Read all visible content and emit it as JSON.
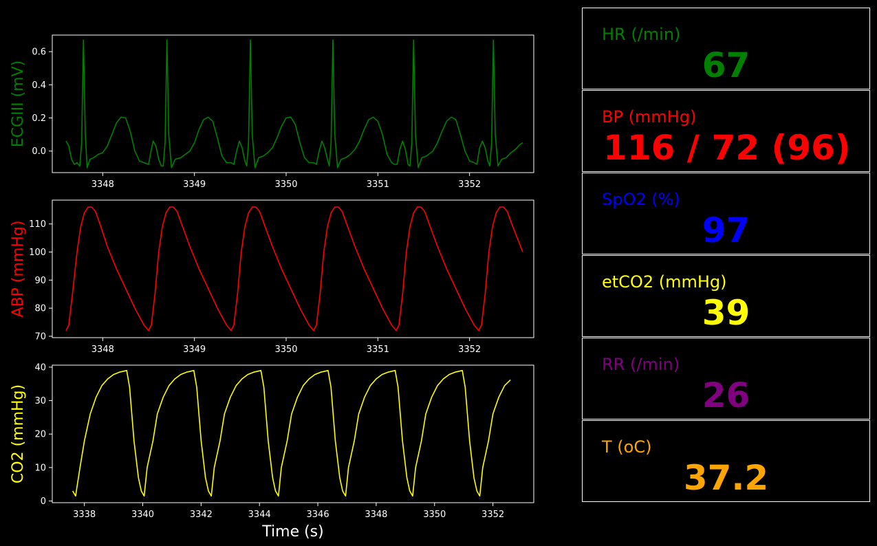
{
  "colors": {
    "ecg": "#008000",
    "abp": "#ff0000",
    "co2": "#ffff00",
    "hr": "#008000",
    "bp": "#ff0000",
    "spo2": "#0000ff",
    "etco2": "#ffff00",
    "rr": "#800080",
    "temp": "#ffa500",
    "axes": "#ffffff",
    "background": "#000000"
  },
  "chart_data": [
    {
      "type": "line",
      "ylabel": "ECGIII (mV)",
      "xlabel": "",
      "color": "#008000",
      "xlim": [
        3347.45,
        3352.7
      ],
      "ylim": [
        -0.13,
        0.7
      ],
      "xticks": [
        3348,
        3349,
        3350,
        3351,
        3352
      ],
      "xtick_labels": [
        "3348",
        "3349",
        "3350",
        "3351",
        "3352"
      ],
      "yticks": [
        0.0,
        0.2,
        0.4,
        0.6
      ],
      "ytick_labels": [
        "0.0",
        "0.2",
        "0.4",
        "0.6"
      ],
      "x": [
        3347.6,
        3347.63,
        3347.66,
        3347.69,
        3347.72,
        3347.75,
        3347.77,
        3347.79,
        3347.81,
        3347.83,
        3347.86,
        3347.9,
        3347.95,
        3348.0,
        3348.05,
        3348.1,
        3348.15,
        3348.2,
        3348.25,
        3348.3,
        3348.35,
        3348.4,
        3348.45,
        3348.5,
        3348.53,
        3348.55,
        3348.58,
        3348.61,
        3348.64,
        3348.66,
        3348.68,
        3348.7,
        3348.72,
        3348.75,
        3348.79,
        3348.85,
        3348.9,
        3348.95,
        3349.0,
        3349.05,
        3349.1,
        3349.15,
        3349.2,
        3349.25,
        3349.3,
        3349.35,
        3349.4,
        3349.43,
        3349.46,
        3349.49,
        3349.52,
        3349.55,
        3349.57,
        3349.59,
        3349.61,
        3349.63,
        3349.66,
        3349.7,
        3349.75,
        3349.8,
        3349.85,
        3349.9,
        3349.95,
        3350.0,
        3350.05,
        3350.1,
        3350.15,
        3350.2,
        3350.25,
        3350.3,
        3350.33,
        3350.36,
        3350.39,
        3350.42,
        3350.45,
        3350.47,
        3350.49,
        3350.51,
        3350.53,
        3350.56,
        3350.6,
        3350.65,
        3350.7,
        3350.75,
        3350.8,
        3350.85,
        3350.9,
        3350.95,
        3351.0,
        3351.05,
        3351.1,
        3351.15,
        3351.18,
        3351.21,
        3351.24,
        3351.27,
        3351.3,
        3351.33,
        3351.35,
        3351.37,
        3351.39,
        3351.41,
        3351.44,
        3351.48,
        3351.53,
        3351.6,
        3351.65,
        3351.7,
        3351.75,
        3351.8,
        3351.85,
        3351.9,
        3351.95,
        3352.0,
        3352.05,
        3352.08,
        3352.11,
        3352.14,
        3352.17,
        3352.2,
        3352.22,
        3352.24,
        3352.26,
        3352.28,
        3352.31,
        3352.35,
        3352.4,
        3352.45,
        3352.5,
        3352.55,
        3352.58
      ],
      "y": [
        0.06,
        0.03,
        -0.05,
        -0.08,
        -0.07,
        -0.09,
        0.05,
        0.67,
        0.1,
        -0.1,
        -0.05,
        -0.04,
        -0.02,
        -0.01,
        0.03,
        0.1,
        0.17,
        0.205,
        0.2,
        0.12,
        0.0,
        -0.06,
        -0.07,
        -0.08,
        0.01,
        0.06,
        0.03,
        -0.05,
        -0.09,
        -0.09,
        0.05,
        0.67,
        0.1,
        -0.1,
        -0.05,
        -0.04,
        -0.02,
        0.0,
        0.05,
        0.13,
        0.19,
        0.205,
        0.18,
        0.08,
        -0.03,
        -0.07,
        -0.07,
        -0.08,
        0.0,
        0.06,
        0.02,
        -0.06,
        -0.09,
        0.05,
        0.67,
        0.1,
        -0.1,
        -0.04,
        -0.03,
        -0.01,
        0.02,
        0.08,
        0.15,
        0.2,
        0.205,
        0.16,
        0.05,
        -0.04,
        -0.07,
        -0.07,
        -0.08,
        0.0,
        0.06,
        0.02,
        -0.05,
        -0.09,
        0.05,
        0.67,
        0.1,
        -0.1,
        -0.05,
        -0.04,
        -0.02,
        0.01,
        0.06,
        0.13,
        0.19,
        0.205,
        0.18,
        0.1,
        -0.02,
        -0.07,
        -0.08,
        -0.08,
        0.01,
        0.06,
        0.01,
        -0.08,
        -0.09,
        0.05,
        0.67,
        0.1,
        -0.1,
        -0.04,
        -0.03,
        0.0,
        0.05,
        0.12,
        0.18,
        0.205,
        0.19,
        0.1,
        0.0,
        -0.06,
        -0.07,
        -0.08,
        0.02,
        0.06,
        0.02,
        -0.06,
        -0.09,
        0.05,
        0.67,
        0.1,
        -0.09,
        -0.05,
        -0.04,
        -0.01,
        0.01,
        0.04,
        0.05
      ]
    },
    {
      "type": "line",
      "ylabel": "ABP (mmHg)",
      "xlabel": "",
      "color": "#ff0000",
      "xlim": [
        3347.45,
        3352.7
      ],
      "ylim": [
        69.5,
        118.5
      ],
      "xticks": [
        3348,
        3349,
        3350,
        3351,
        3352
      ],
      "xtick_labels": [
        "3348",
        "3349",
        "3350",
        "3351",
        "3352"
      ],
      "yticks": [
        70,
        80,
        90,
        100,
        110
      ],
      "ytick_labels": [
        "70",
        "80",
        "90",
        "100",
        "110"
      ],
      "x": [
        3347.6,
        3347.63,
        3347.67,
        3347.72,
        3347.76,
        3347.8,
        3347.84,
        3347.88,
        3347.92,
        3347.97,
        3348.05,
        3348.15,
        3348.25,
        3348.35,
        3348.45,
        3348.5,
        3348.53,
        3348.57,
        3348.61,
        3348.65,
        3348.69,
        3348.73,
        3348.77,
        3348.81,
        3348.86,
        3348.95,
        3349.05,
        3349.15,
        3349.25,
        3349.35,
        3349.4,
        3349.43,
        3349.47,
        3349.51,
        3349.55,
        3349.59,
        3349.63,
        3349.67,
        3349.71,
        3349.76,
        3349.85,
        3349.95,
        3350.05,
        3350.15,
        3350.25,
        3350.3,
        3350.33,
        3350.37,
        3350.41,
        3350.45,
        3350.49,
        3350.53,
        3350.57,
        3350.61,
        3350.66,
        3350.75,
        3350.85,
        3350.95,
        3351.05,
        3351.15,
        3351.2,
        3351.23,
        3351.27,
        3351.31,
        3351.35,
        3351.39,
        3351.43,
        3351.47,
        3351.51,
        3351.56,
        3351.65,
        3351.75,
        3351.85,
        3351.95,
        3352.05,
        3352.1,
        3352.13,
        3352.17,
        3352.21,
        3352.25,
        3352.29,
        3352.33,
        3352.37,
        3352.41,
        3352.46,
        3352.52,
        3352.58
      ],
      "y": [
        72,
        74,
        85,
        100,
        109,
        114,
        116,
        116,
        114.5,
        110,
        102,
        94,
        87,
        80,
        74,
        72,
        74,
        85,
        100,
        109,
        114,
        116,
        116,
        114.5,
        110,
        102,
        94,
        87,
        80,
        74,
        72,
        74,
        85,
        100,
        109,
        114,
        116,
        116,
        114.5,
        110,
        102,
        94,
        87,
        80,
        74,
        72,
        74,
        85,
        100,
        109,
        114,
        116,
        116,
        114.5,
        110,
        102,
        94,
        87,
        80,
        74,
        72,
        74,
        85,
        100,
        109,
        114,
        116,
        116,
        114.5,
        110,
        102,
        94,
        87,
        80,
        74,
        72,
        74,
        85,
        100,
        109,
        114,
        116,
        116,
        114.5,
        110,
        105,
        100
      ]
    },
    {
      "type": "line",
      "ylabel": "CO2 (mmHg)",
      "xlabel": "Time (s)",
      "color": "#ffff00",
      "xlim": [
        3336.9,
        3353.4
      ],
      "ylim": [
        -0.5,
        40.6
      ],
      "xticks": [
        3338,
        3340,
        3342,
        3344,
        3346,
        3348,
        3350,
        3352
      ],
      "xtick_labels": [
        "3338",
        "3340",
        "3342",
        "3344",
        "3346",
        "3348",
        "3350",
        "3352"
      ],
      "yticks": [
        0,
        10,
        20,
        30,
        40
      ],
      "ytick_labels": [
        "0",
        "10",
        "20",
        "30",
        "40"
      ],
      "x": [
        3337.6,
        3337.7,
        3337.85,
        3338.0,
        3338.2,
        3338.4,
        3338.6,
        3338.8,
        3339.0,
        3339.2,
        3339.45,
        3339.55,
        3339.7,
        3339.85,
        3339.95,
        3340.05,
        3340.15,
        3340.35,
        3340.5,
        3340.7,
        3340.9,
        3341.1,
        3341.3,
        3341.5,
        3341.75,
        3341.85,
        3342.0,
        3342.15,
        3342.25,
        3342.35,
        3342.45,
        3342.65,
        3342.8,
        3343.0,
        3343.2,
        3343.4,
        3343.6,
        3343.8,
        3344.05,
        3344.15,
        3344.3,
        3344.45,
        3344.55,
        3344.65,
        3344.75,
        3344.95,
        3345.1,
        3345.3,
        3345.5,
        3345.7,
        3345.9,
        3346.1,
        3346.35,
        3346.45,
        3346.6,
        3346.75,
        3346.85,
        3346.95,
        3347.05,
        3347.25,
        3347.4,
        3347.6,
        3347.8,
        3348.0,
        3348.2,
        3348.4,
        3348.65,
        3348.75,
        3348.9,
        3349.05,
        3349.15,
        3349.25,
        3349.35,
        3349.55,
        3349.7,
        3349.9,
        3350.1,
        3350.3,
        3350.5,
        3350.7,
        3350.95,
        3351.05,
        3351.2,
        3351.35,
        3351.45,
        3351.55,
        3351.65,
        3351.85,
        3352.0,
        3352.2,
        3352.4,
        3352.6
      ],
      "y": [
        3,
        1.5,
        10,
        18,
        26,
        31,
        34.5,
        36.5,
        37.8,
        38.5,
        39,
        34,
        18,
        7,
        3,
        1.5,
        10,
        18,
        26,
        31,
        34.5,
        36.5,
        37.8,
        38.5,
        39,
        34,
        18,
        7,
        3,
        1.5,
        10,
        18,
        26,
        31,
        34.5,
        36.5,
        37.8,
        38.5,
        39,
        34,
        18,
        7,
        3,
        1.5,
        10,
        18,
        26,
        31,
        34.5,
        36.5,
        37.8,
        38.5,
        39,
        34,
        18,
        7,
        3,
        1.5,
        10,
        18,
        26,
        31,
        34.5,
        36.5,
        37.8,
        38.5,
        39,
        34,
        18,
        7,
        3,
        1.5,
        10,
        18,
        26,
        31,
        34.5,
        36.5,
        37.8,
        38.5,
        39,
        34,
        18,
        7,
        3,
        1.5,
        10,
        18,
        26,
        31,
        34.5,
        36.2
      ]
    }
  ],
  "vitals": {
    "hr": {
      "label": "HR (/min)",
      "value": "67"
    },
    "bp": {
      "label": "BP  (mmHg)",
      "value": "116 / 72 (96)"
    },
    "spo2": {
      "label": "SpO2 (%)",
      "value": "97"
    },
    "etco2": {
      "label": "etCO2 (mmHg)",
      "value": "39"
    },
    "rr": {
      "label": "RR (/min)",
      "value": "26"
    },
    "temp": {
      "label": "T (oC)",
      "value": "37.2"
    }
  }
}
